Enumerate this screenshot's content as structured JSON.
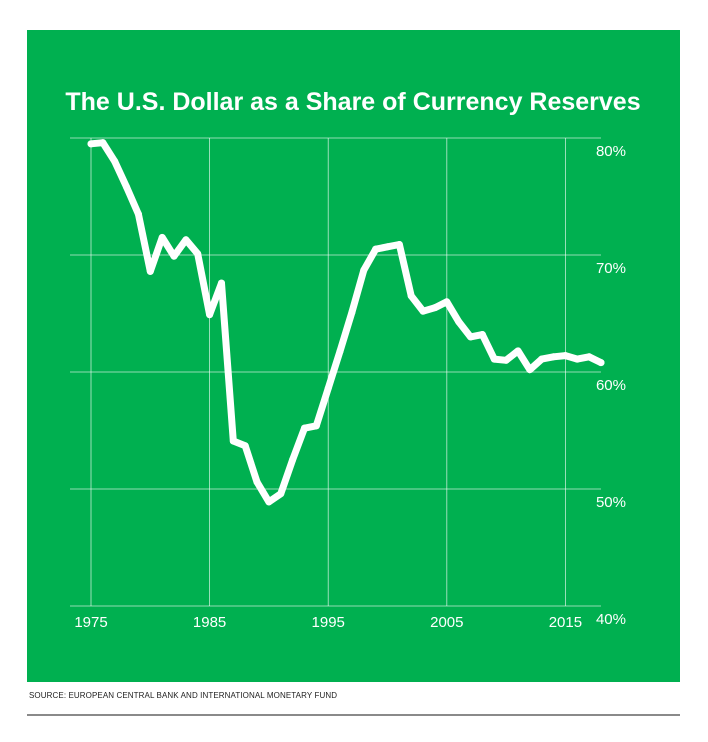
{
  "colors": {
    "background": "#00b050",
    "line": "#ffffff",
    "grid": "#ffffff"
  },
  "source": "SOURCE: EUROPEAN CENTRAL BANK AND INTERNATIONAL MONETARY FUND",
  "chart_data": {
    "type": "line",
    "title": "The U.S. Dollar as a Share of Currency Reserves",
    "xlabel": "",
    "ylabel": "",
    "xlim": [
      1975,
      2018
    ],
    "ylim": [
      40,
      80
    ],
    "x_ticks": [
      1975,
      1985,
      1995,
      2005,
      2015
    ],
    "x_tick_labels": [
      "1975",
      "1985",
      "1995",
      "2005",
      "2015"
    ],
    "y_ticks": [
      40,
      50,
      60,
      70,
      80
    ],
    "y_tick_labels": [
      "40%",
      "50%",
      "60%",
      "70%",
      "80%"
    ],
    "grid": true,
    "y_axis_side": "right",
    "series": [
      {
        "x": [
          1975,
          1976,
          1977,
          1978,
          1979,
          1980,
          1981,
          1982,
          1983,
          1984,
          1985,
          1986,
          1987,
          1988,
          1989,
          1990,
          1991,
          1992,
          1993,
          1994,
          1995,
          1996,
          1997,
          1998,
          1999,
          2000,
          2001,
          2002,
          2003,
          2004,
          2005,
          2006,
          2007,
          2008,
          2009,
          2010,
          2011,
          2012,
          2013,
          2014,
          2015,
          2016,
          2017,
          2018
        ],
        "y": [
          79.5,
          79.6,
          78.0,
          75.8,
          73.5,
          68.6,
          71.5,
          69.9,
          71.3,
          70.1,
          64.9,
          67.6,
          54.1,
          53.7,
          50.6,
          48.9,
          49.6,
          52.5,
          55.2,
          55.4,
          58.6,
          61.8,
          65.1,
          68.7,
          70.5,
          70.7,
          70.9,
          66.5,
          65.2,
          65.5,
          66.0,
          64.3,
          63.0,
          63.2,
          61.1,
          61.0,
          61.8,
          60.2,
          61.1,
          61.3,
          61.4,
          61.1,
          61.3,
          60.8
        ]
      }
    ]
  }
}
